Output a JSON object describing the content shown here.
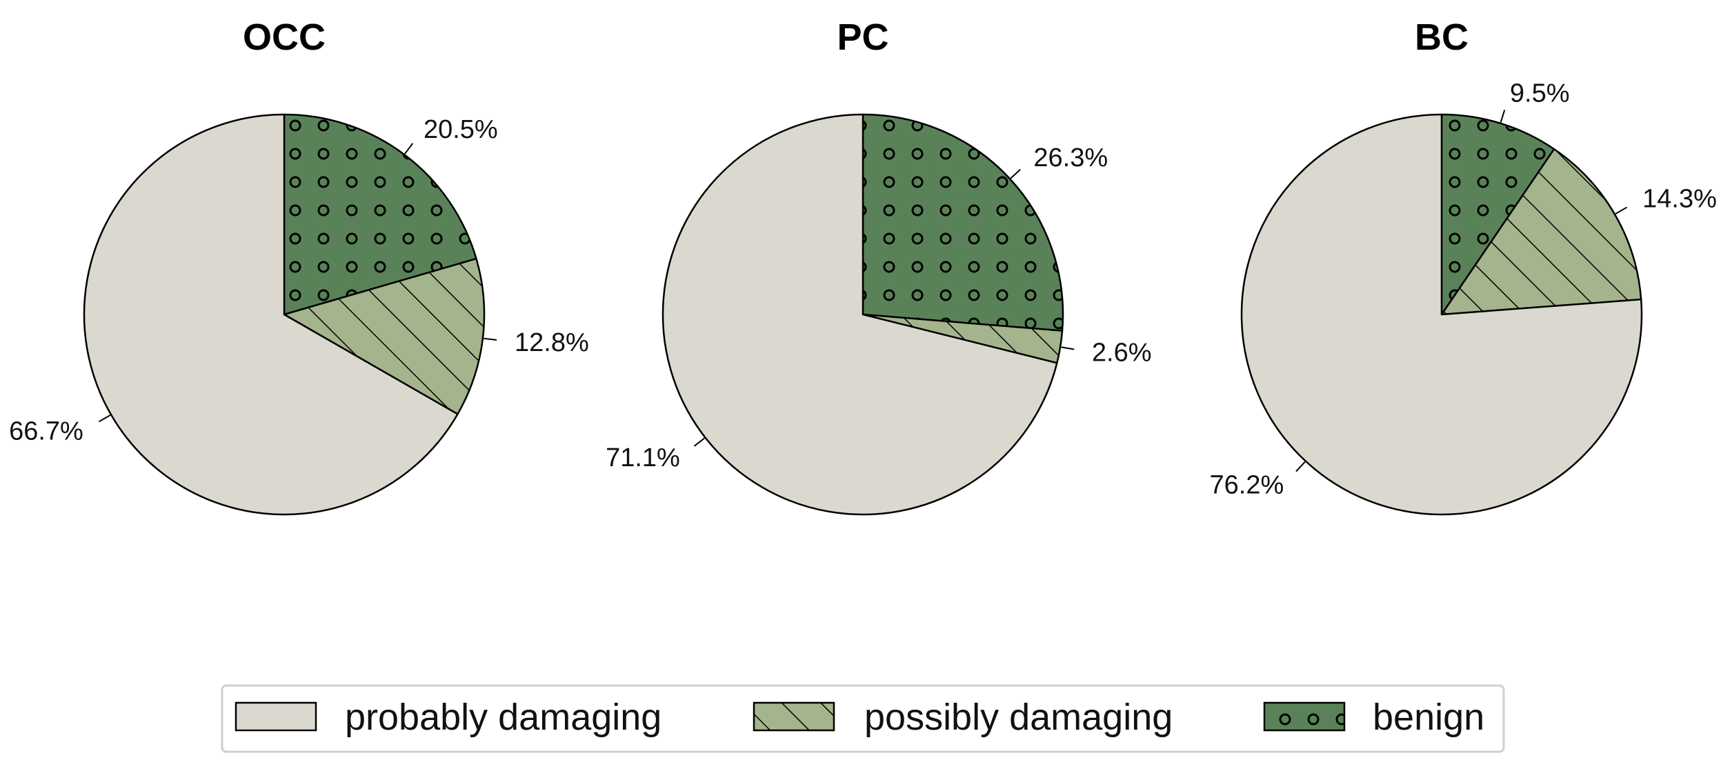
{
  "chart_data": [
    {
      "type": "pie",
      "title": "OCC",
      "slices": [
        {
          "label": "benign",
          "value": 20.5,
          "text": "20.5%"
        },
        {
          "label": "possibly damaging",
          "value": 12.8,
          "text": "12.8%"
        },
        {
          "label": "probably damaging",
          "value": 66.7,
          "text": "66.7%"
        }
      ]
    },
    {
      "type": "pie",
      "title": "PC",
      "slices": [
        {
          "label": "benign",
          "value": 26.3,
          "text": "26.3%"
        },
        {
          "label": "possibly damaging",
          "value": 2.6,
          "text": "2.6%"
        },
        {
          "label": "probably damaging",
          "value": 71.1,
          "text": "71.1%"
        }
      ]
    },
    {
      "type": "pie",
      "title": "BC",
      "slices": [
        {
          "label": "benign",
          "value": 9.5,
          "text": "9.5%"
        },
        {
          "label": "possibly damaging",
          "value": 14.3,
          "text": "14.3%"
        },
        {
          "label": "probably damaging",
          "value": 76.2,
          "text": "76.2%"
        }
      ]
    }
  ],
  "legend": {
    "placement": "bottom-center",
    "items": [
      {
        "label": "probably damaging",
        "key": "probably damaging"
      },
      {
        "label": "possibly damaging",
        "key": "possibly damaging"
      },
      {
        "label": "benign",
        "key": "benign"
      }
    ]
  },
  "colors": {
    "probably damaging": "#dbd9cf",
    "possibly damaging": "#a4b48c",
    "benign": "#5a8259",
    "outline": "#000000"
  }
}
